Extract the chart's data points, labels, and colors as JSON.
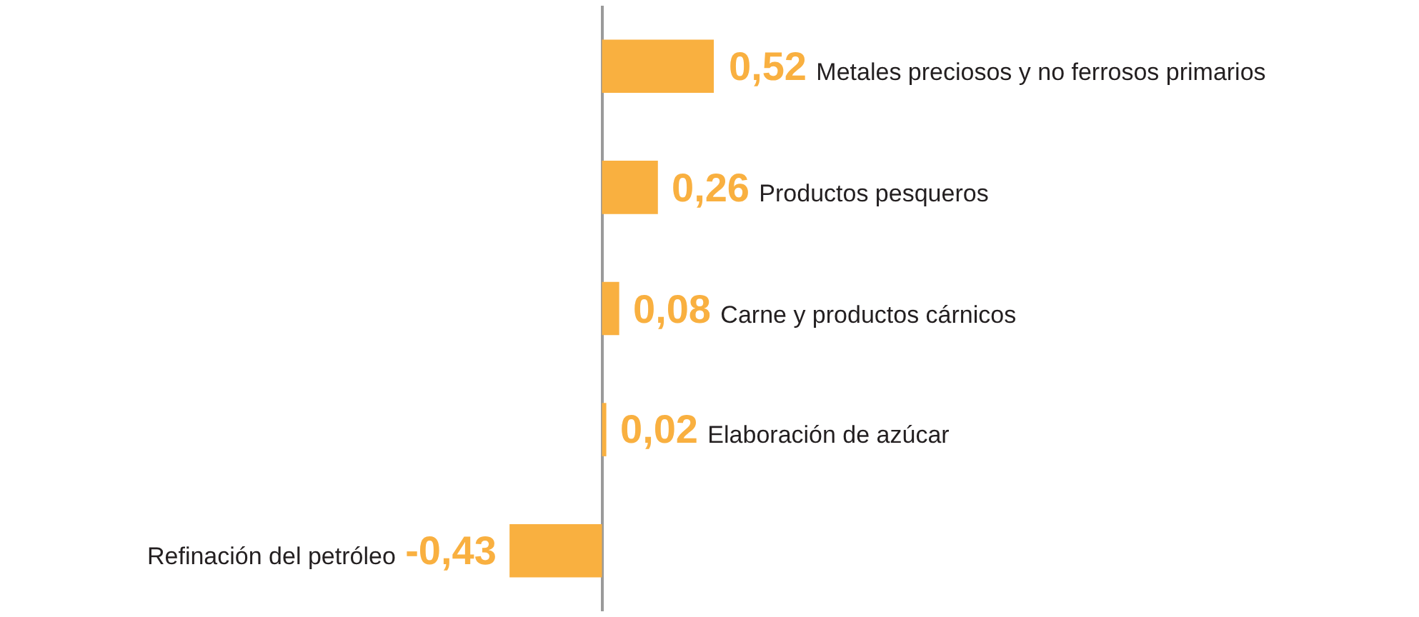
{
  "chart_data": {
    "type": "bar",
    "orientation": "horizontal",
    "categories": [
      "Metales preciosos y no ferrosos primarios",
      "Productos pesqueros",
      "Carne y productos cárnicos",
      "Elaboración de azúcar",
      "Refinación del petróleo"
    ],
    "values": [
      0.52,
      0.26,
      0.08,
      0.02,
      -0.43
    ],
    "value_labels": [
      "0,52",
      "0,26",
      "0,08",
      "0,02",
      "-0,43"
    ],
    "color": "#f9b040",
    "xlim": [
      -2.8,
      3.8
    ],
    "grid": false,
    "legend": false
  }
}
